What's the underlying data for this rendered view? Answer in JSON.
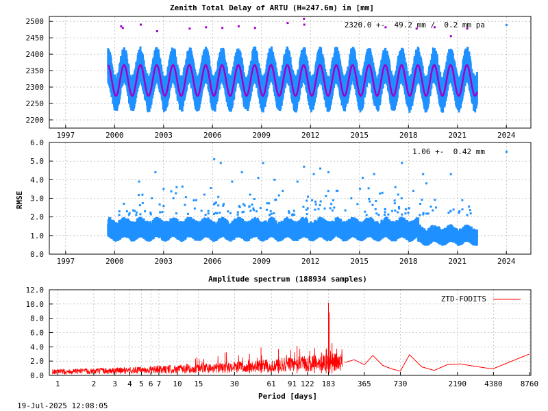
{
  "timestamp": "19-Jul-2025 12:08:05",
  "colors": {
    "obs": "#1e90ff",
    "model": "#a000c8",
    "spectrum": "#ff0000",
    "grid": "#a0a0a0"
  },
  "chart_data": [
    {
      "type": "scatter",
      "title": "Zenith Total Delay of ARTU (H=247.6m) in [mm]",
      "annotation": "2320.0 +-  49.2 mm /  0.2 mm pa",
      "xlabel": "",
      "ylabel": "",
      "xlim": [
        1996.0,
        2025.5
      ],
      "ylim": [
        2175,
        2515
      ],
      "x_ticks": [
        1997,
        2000,
        2003,
        2006,
        2009,
        2012,
        2015,
        2018,
        2021,
        2024
      ],
      "y_ticks": [
        2200,
        2250,
        2300,
        2350,
        2400,
        2450,
        2500
      ],
      "grid": true,
      "data_span": [
        1999.6,
        2022.2
      ],
      "series": [
        {
          "kind": "observations",
          "mean": 2320.0,
          "seasonal_amplitude": 45,
          "noise": 30,
          "points_per_year": 100
        },
        {
          "kind": "seasonal-model",
          "mean": 2320.0,
          "amplitude": 47,
          "peak_phase": 0.58
        }
      ],
      "outliers": [
        {
          "x": 2000.4,
          "y": 2485
        },
        {
          "x": 2000.5,
          "y": 2480
        },
        {
          "x": 2001.6,
          "y": 2490
        },
        {
          "x": 2002.6,
          "y": 2470
        },
        {
          "x": 2004.6,
          "y": 2478
        },
        {
          "x": 2005.6,
          "y": 2482
        },
        {
          "x": 2006.6,
          "y": 2480
        },
        {
          "x": 2007.6,
          "y": 2485
        },
        {
          "x": 2008.6,
          "y": 2480
        },
        {
          "x": 2010.6,
          "y": 2495
        },
        {
          "x": 2011.6,
          "y": 2508
        },
        {
          "x": 2011.62,
          "y": 2490
        },
        {
          "x": 2016.6,
          "y": 2482
        },
        {
          "x": 2018.5,
          "y": 2478
        },
        {
          "x": 2019.6,
          "y": 2482
        },
        {
          "x": 2020.6,
          "y": 2455
        },
        {
          "x": 2021.6,
          "y": 2478
        }
      ],
      "legend": "top-right"
    },
    {
      "type": "scatter",
      "title": "",
      "annotation": "1.06 +-  0.42 mm",
      "xlabel": "",
      "ylabel": "RMSE",
      "xlim": [
        1996.0,
        2025.5
      ],
      "ylim": [
        0.0,
        6.0
      ],
      "x_ticks": [
        1997,
        2000,
        2003,
        2006,
        2009,
        2012,
        2015,
        2018,
        2021,
        2024
      ],
      "y_ticks": [
        0.0,
        1.0,
        2.0,
        3.0,
        4.0,
        5.0,
        6.0
      ],
      "y_tick_labels": [
        "0.0",
        "1.0",
        "2.0",
        "3.0",
        "4.0",
        "5.0",
        "6.0"
      ],
      "grid": true,
      "data_span": [
        1999.6,
        2022.2
      ],
      "baseline": [
        {
          "from": 1999.6,
          "to": 2018.6,
          "level": 1.2,
          "spread": 0.35
        },
        {
          "from": 2018.6,
          "to": 2022.2,
          "level": 0.9,
          "spread": 0.3
        }
      ],
      "outliers": [
        {
          "x": 2001.5,
          "y": 3.9
        },
        {
          "x": 2002.5,
          "y": 4.4
        },
        {
          "x": 2003.0,
          "y": 3.5
        },
        {
          "x": 2003.6,
          "y": 3.0
        },
        {
          "x": 2003.8,
          "y": 3.6
        },
        {
          "x": 2005.0,
          "y": 2.9
        },
        {
          "x": 2005.5,
          "y": 3.2
        },
        {
          "x": 2006.1,
          "y": 5.1
        },
        {
          "x": 2006.5,
          "y": 4.9
        },
        {
          "x": 2007.2,
          "y": 3.9
        },
        {
          "x": 2007.8,
          "y": 4.4
        },
        {
          "x": 2008.3,
          "y": 3.2
        },
        {
          "x": 2008.8,
          "y": 4.1
        },
        {
          "x": 2009.1,
          "y": 4.9
        },
        {
          "x": 2009.8,
          "y": 4.0
        },
        {
          "x": 2010.3,
          "y": 3.4
        },
        {
          "x": 2011.2,
          "y": 3.9
        },
        {
          "x": 2011.6,
          "y": 4.7
        },
        {
          "x": 2012.2,
          "y": 4.3
        },
        {
          "x": 2012.6,
          "y": 4.6
        },
        {
          "x": 2013.1,
          "y": 4.4
        },
        {
          "x": 2013.6,
          "y": 3.4
        },
        {
          "x": 2014.5,
          "y": 3.0
        },
        {
          "x": 2015.2,
          "y": 4.1
        },
        {
          "x": 2015.9,
          "y": 4.3
        },
        {
          "x": 2016.4,
          "y": 3.3
        },
        {
          "x": 2017.2,
          "y": 3.6
        },
        {
          "x": 2017.6,
          "y": 4.9
        },
        {
          "x": 2018.3,
          "y": 3.4
        },
        {
          "x": 2018.9,
          "y": 4.3
        },
        {
          "x": 2019.1,
          "y": 3.8
        },
        {
          "x": 2020.6,
          "y": 4.3
        },
        {
          "x": 2021.3,
          "y": 2.9
        },
        {
          "x": 2021.6,
          "y": 2.1
        }
      ],
      "legend": "top-right"
    },
    {
      "type": "line",
      "title": "Amplitude spectrum (188934 samples)",
      "xlabel": "Period [days]",
      "ylabel": "",
      "x_scale": "log",
      "xlim": [
        0.85,
        9000
      ],
      "ylim": [
        0.0,
        12.0
      ],
      "x_ticks": [
        1,
        2,
        3,
        4,
        5,
        6,
        7,
        10,
        15,
        30,
        61,
        91,
        122,
        183,
        365,
        730,
        2190,
        4380,
        8760
      ],
      "y_ticks": [
        0.0,
        2.0,
        4.0,
        6.0,
        8.0,
        10.0,
        12.0
      ],
      "y_tick_labels": [
        "0.0",
        "2.0",
        "4.0",
        "6.0",
        "8.0",
        "10.0",
        "12.0"
      ],
      "grid": true,
      "legend": "top-right",
      "series": [
        {
          "name": "ZTD-FODITS",
          "peaks": [
            {
              "x": 183,
              "y": 10.2
            },
            {
              "x": 187,
              "y": 8.8
            },
            {
              "x": 196,
              "y": 4.5
            },
            {
              "x": 175,
              "y": 3.6
            },
            {
              "x": 160,
              "y": 3.2
            },
            {
              "x": 140,
              "y": 3.0
            },
            {
              "x": 100,
              "y": 4.1
            },
            {
              "x": 70,
              "y": 3.7
            },
            {
              "x": 50,
              "y": 3.9
            },
            {
              "x": 40,
              "y": 3.0
            },
            {
              "x": 25,
              "y": 3.2
            }
          ],
          "low_frequency": [
            {
              "x": 250,
              "y": 1.8
            },
            {
              "x": 300,
              "y": 2.2
            },
            {
              "x": 365,
              "y": 1.5
            },
            {
              "x": 430,
              "y": 2.8
            },
            {
              "x": 520,
              "y": 1.4
            },
            {
              "x": 620,
              "y": 0.9
            },
            {
              "x": 730,
              "y": 0.6
            },
            {
              "x": 870,
              "y": 2.9
            },
            {
              "x": 1100,
              "y": 1.2
            },
            {
              "x": 1400,
              "y": 0.7
            },
            {
              "x": 1800,
              "y": 1.5
            },
            {
              "x": 2300,
              "y": 1.6
            },
            {
              "x": 3000,
              "y": 1.3
            },
            {
              "x": 4300,
              "y": 0.9
            },
            {
              "x": 8760,
              "y": 3.0
            }
          ]
        }
      ]
    }
  ]
}
